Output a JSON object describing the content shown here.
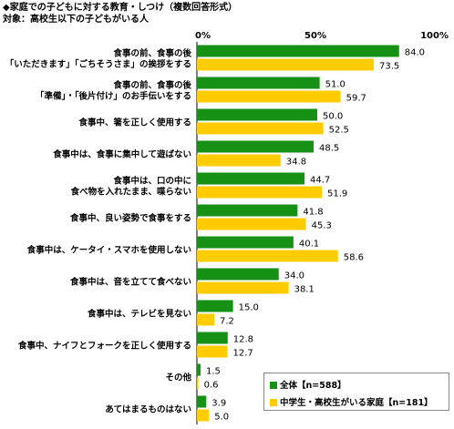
{
  "header": {
    "title": "◆家庭での子どもに対する教育・しつけ（複数回答形式）",
    "subtitle": "対象：高校生以下の子どもがいる人"
  },
  "colors": {
    "series_all": "#169116",
    "series_teen": "#ffcc00"
  },
  "chart_data": {
    "type": "bar",
    "orientation": "horizontal",
    "title": "",
    "xlim": [
      0,
      100
    ],
    "x_ticks": [
      "0%",
      "50%",
      "100%"
    ],
    "grid": false,
    "legend_position": "bottom-right",
    "categories": [
      [
        "食事の前、食事の後",
        "「いただきます」「ごちそうさま」の挨拶をする"
      ],
      [
        "食事の前、食事の後",
        "「準備」・「後片付け」のお手伝いをする"
      ],
      [
        "食事中、箸を正しく使用する"
      ],
      [
        "食事中は、食事に集中して遊ばない"
      ],
      [
        "食事中は、口の中に",
        "食べ物を入れたまま、喋らない"
      ],
      [
        "食事中、良い姿勢で食事をする"
      ],
      [
        "食事中は、ケータイ・スマホを使用しない"
      ],
      [
        "食事中は、音を立てて食べない"
      ],
      [
        "食事中は、テレビを見ない"
      ],
      [
        "食事中、ナイフとフォークを正しく使用する"
      ],
      [
        "その他"
      ],
      [
        "あてはまるものはない"
      ]
    ],
    "series": [
      {
        "name": "全体【n=588】",
        "values": [
          84.0,
          51.0,
          50.0,
          48.5,
          44.7,
          41.8,
          40.1,
          34.0,
          15.0,
          12.8,
          1.5,
          3.9
        ]
      },
      {
        "name": "中学生・高校生がいる家庭【n=181】",
        "values": [
          73.5,
          59.7,
          52.5,
          34.8,
          51.9,
          45.3,
          58.6,
          38.1,
          7.2,
          12.7,
          0.6,
          5.0
        ]
      }
    ]
  }
}
